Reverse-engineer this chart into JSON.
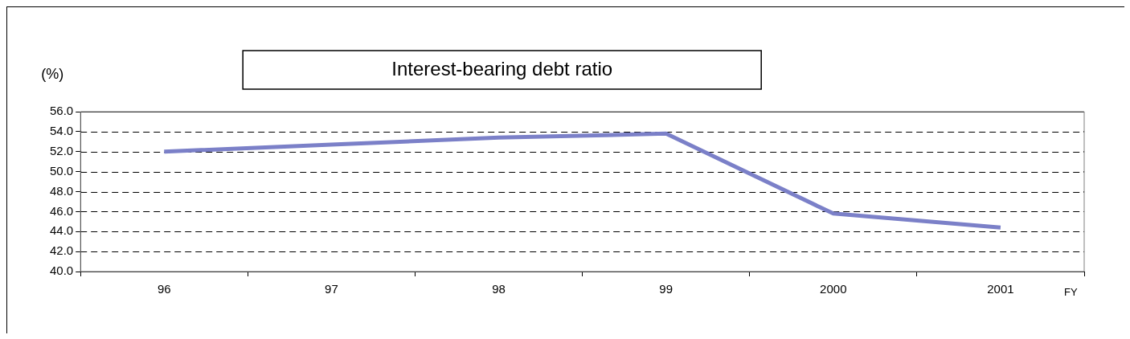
{
  "chart_data": {
    "type": "line",
    "title": "Interest-bearing debt ratio",
    "ylabel": "(%)",
    "xlabel": "FY",
    "categories": [
      "96",
      "97",
      "98",
      "99",
      "2000",
      "2001"
    ],
    "series": [
      {
        "color": "#7b80c8",
        "values": [
          52.0,
          52.7,
          53.4,
          53.8,
          45.8,
          44.4
        ]
      }
    ],
    "ylim": [
      40,
      56
    ],
    "yticks": [
      {
        "value": 40,
        "label": "40.0"
      },
      {
        "value": 42,
        "label": "42.0"
      },
      {
        "value": 44,
        "label": "44.0"
      },
      {
        "value": 46,
        "label": "46.0"
      },
      {
        "value": 48,
        "label": "48.0"
      },
      {
        "value": 50,
        "label": "50.0"
      },
      {
        "value": 52,
        "label": "52.0"
      },
      {
        "value": 54,
        "label": "54.0"
      },
      {
        "value": 56,
        "label": "56.0"
      }
    ],
    "grid": "y",
    "legend": false,
    "marker": "none",
    "line_style": "solid"
  }
}
